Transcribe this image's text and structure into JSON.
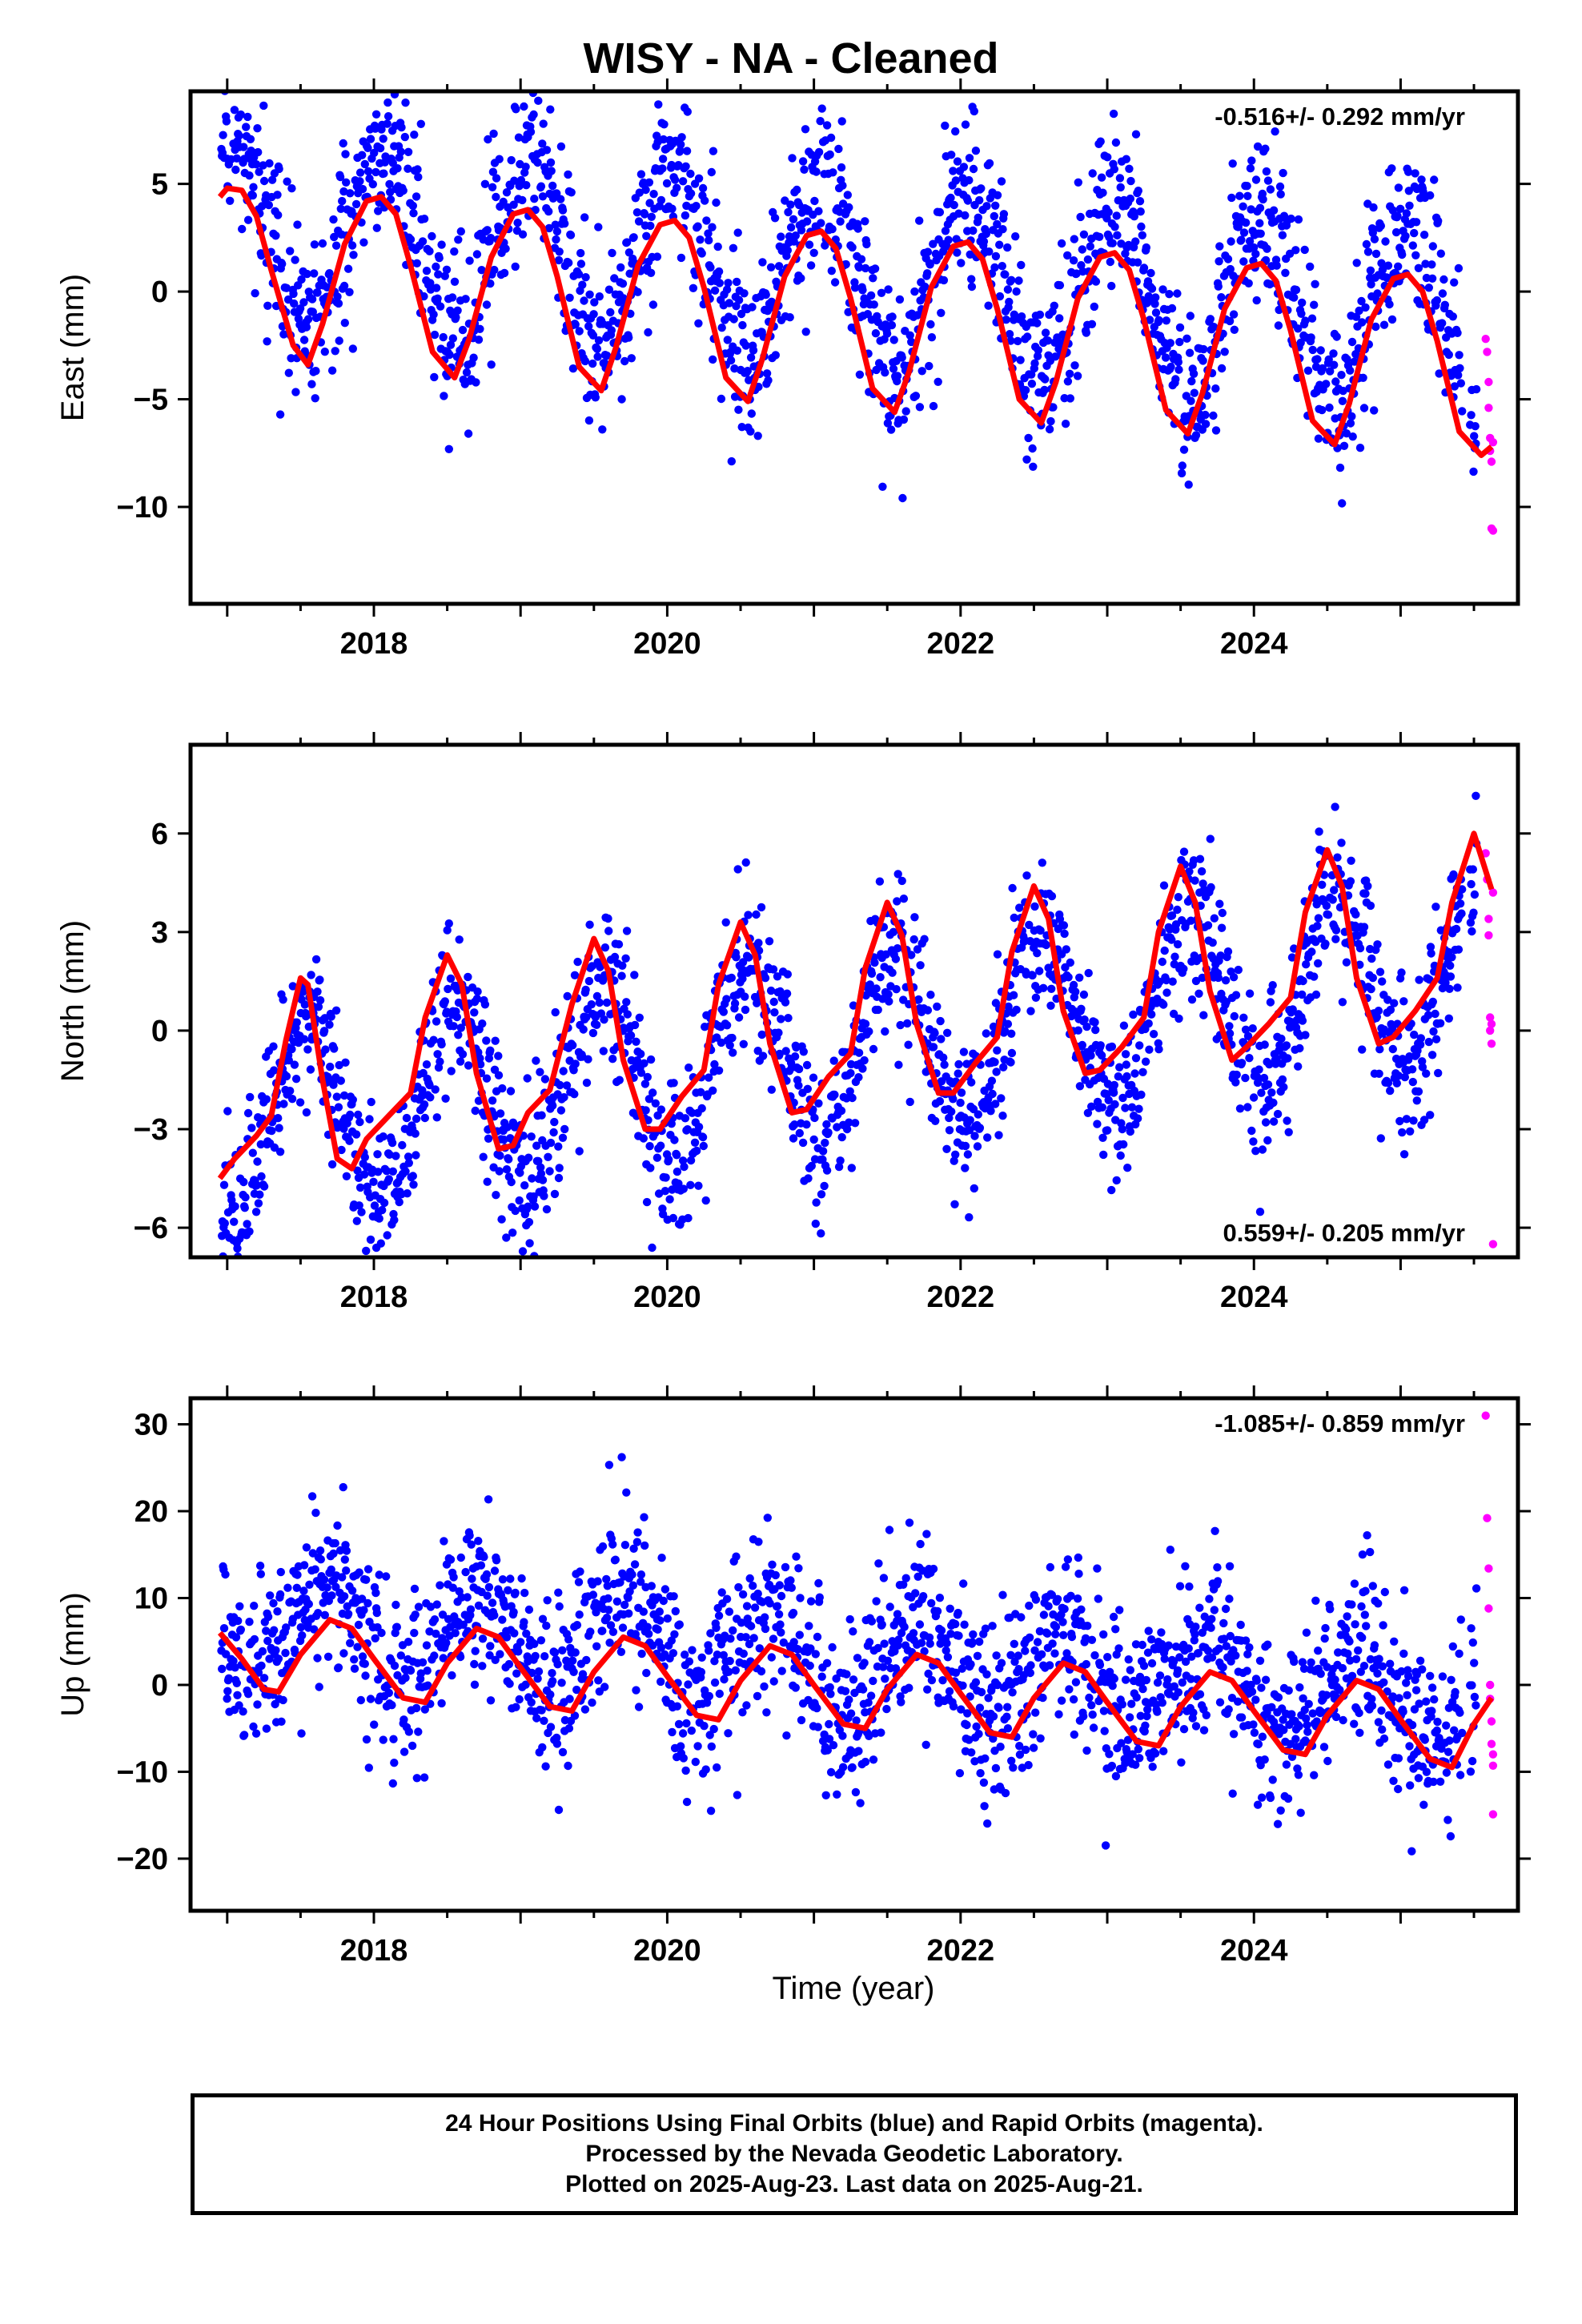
{
  "title": "WISY  - NA - Cleaned",
  "xlabel": "Time (year)",
  "caption": [
    "24 Hour Positions Using Final Orbits (blue) and Rapid Orbits (magenta).",
    "Processed by the Nevada Geodetic Laboratory.",
    "Plotted on 2025-Aug-23. Last data on 2025-Aug-21."
  ],
  "colors": {
    "final": "#0000ff",
    "rapid": "#ff00ff",
    "model": "#ff0000"
  },
  "chart_data": [
    {
      "type": "scatter",
      "ylabel": "East (mm)",
      "rate": "-0.516+/- 0.292 mm/yr",
      "rate_position": "top-right",
      "xlim": [
        2016.75,
        2025.8
      ],
      "ylim": [
        -14.5,
        9.3
      ],
      "xticks": [
        2018,
        2020,
        2022,
        2024
      ],
      "yticks": [
        5,
        0,
        -5,
        -10
      ],
      "model": {
        "x": [
          2016.95,
          2017.0,
          2017.1,
          2017.2,
          2017.3,
          2017.45,
          2017.55,
          2017.65,
          2017.8,
          2017.95,
          2018.05,
          2018.15,
          2018.25,
          2018.4,
          2018.55,
          2018.65,
          2018.8,
          2018.95,
          2019.05,
          2019.15,
          2019.25,
          2019.4,
          2019.55,
          2019.65,
          2019.8,
          2019.95,
          2020.05,
          2020.15,
          2020.25,
          2020.4,
          2020.55,
          2020.65,
          2020.8,
          2020.95,
          2021.05,
          2021.15,
          2021.25,
          2021.4,
          2021.55,
          2021.65,
          2021.8,
          2021.95,
          2022.05,
          2022.15,
          2022.25,
          2022.4,
          2022.55,
          2022.65,
          2022.8,
          2022.95,
          2023.05,
          2023.15,
          2023.25,
          2023.4,
          2023.55,
          2023.65,
          2023.8,
          2023.95,
          2024.05,
          2024.15,
          2024.25,
          2024.4,
          2024.55,
          2024.65,
          2024.8,
          2024.95,
          2025.05,
          2025.15,
          2025.25,
          2025.4,
          2025.55,
          2025.62
        ],
        "y": [
          4.4,
          4.8,
          4.7,
          3.5,
          1.0,
          -2.5,
          -3.4,
          -1.5,
          2.2,
          4.2,
          4.4,
          3.6,
          1.2,
          -2.8,
          -4.0,
          -2.2,
          1.6,
          3.6,
          3.8,
          3.0,
          0.7,
          -3.5,
          -4.6,
          -2.6,
          1.2,
          3.1,
          3.3,
          2.5,
          0.2,
          -4.0,
          -5.1,
          -3.1,
          0.7,
          2.6,
          2.8,
          2.0,
          -0.3,
          -4.5,
          -5.6,
          -3.7,
          0.2,
          2.1,
          2.3,
          1.5,
          -0.8,
          -5.0,
          -6.1,
          -4.2,
          -0.3,
          1.6,
          1.8,
          1.0,
          -1.3,
          -5.5,
          -6.6,
          -4.7,
          -0.8,
          1.1,
          1.3,
          0.5,
          -1.8,
          -6.0,
          -7.1,
          -5.2,
          -1.3,
          0.6,
          0.8,
          0.0,
          -2.3,
          -6.5,
          -7.6,
          -7.2
        ]
      },
      "final": {
        "amp": 4.2,
        "trend": -0.516,
        "offset": 1.0,
        "noise": 2.0,
        "phase": 0.05
      },
      "rapid": {
        "x": [
          2025.58,
          2025.59,
          2025.6,
          2025.6,
          2025.61,
          2025.61,
          2025.62,
          2025.62,
          2025.63,
          2025.63
        ],
        "y": [
          -2.2,
          -2.8,
          -4.2,
          -5.4,
          -6.8,
          -7.4,
          -7.9,
          -11.0,
          -11.1,
          -7.0
        ]
      }
    },
    {
      "type": "scatter",
      "ylabel": "North (mm)",
      "rate": "0.559+/- 0.205 mm/yr",
      "rate_position": "bottom-right",
      "xlim": [
        2016.75,
        2025.8
      ],
      "ylim": [
        -6.9,
        8.7
      ],
      "xticks": [
        2018,
        2020,
        2022,
        2024
      ],
      "yticks": [
        6,
        3,
        0,
        -3,
        -6
      ],
      "model": {
        "x": [
          2016.95,
          2017.05,
          2017.2,
          2017.3,
          2017.4,
          2017.5,
          2017.55,
          2017.65,
          2017.75,
          2017.85,
          2017.95,
          2018.1,
          2018.25,
          2018.35,
          2018.5,
          2018.6,
          2018.7,
          2018.85,
          2018.95,
          2019.05,
          2019.2,
          2019.35,
          2019.5,
          2019.6,
          2019.7,
          2019.85,
          2019.95,
          2020.1,
          2020.25,
          2020.35,
          2020.5,
          2020.6,
          2020.7,
          2020.85,
          2020.95,
          2021.1,
          2021.25,
          2021.35,
          2021.5,
          2021.6,
          2021.7,
          2021.85,
          2021.95,
          2022.1,
          2022.25,
          2022.35,
          2022.5,
          2022.6,
          2022.7,
          2022.85,
          2022.95,
          2023.1,
          2023.25,
          2023.35,
          2023.5,
          2023.6,
          2023.7,
          2023.85,
          2023.95,
          2024.1,
          2024.25,
          2024.35,
          2024.5,
          2024.6,
          2024.7,
          2024.85,
          2024.95,
          2025.1,
          2025.25,
          2025.35,
          2025.5,
          2025.62
        ],
        "y": [
          -4.5,
          -3.9,
          -3.2,
          -2.6,
          -0.3,
          1.6,
          1.4,
          -1.5,
          -3.9,
          -4.2,
          -3.3,
          -2.6,
          -1.9,
          0.4,
          2.3,
          1.4,
          -1.3,
          -3.6,
          -3.5,
          -2.5,
          -1.8,
          0.8,
          2.8,
          1.8,
          -0.9,
          -3.0,
          -3.0,
          -2.0,
          -1.2,
          1.4,
          3.3,
          2.3,
          -0.4,
          -2.5,
          -2.4,
          -1.4,
          -0.7,
          1.9,
          3.9,
          2.9,
          0.2,
          -1.9,
          -1.9,
          -1.0,
          -0.2,
          2.4,
          4.4,
          3.4,
          0.6,
          -1.3,
          -1.2,
          -0.5,
          0.4,
          3.0,
          5.0,
          3.9,
          1.2,
          -0.9,
          -0.5,
          0.2,
          1.0,
          3.6,
          5.5,
          4.4,
          1.6,
          -0.4,
          -0.2,
          0.6,
          1.6,
          3.9,
          6.0,
          4.3
        ]
      },
      "final": {
        "amp": 2.8,
        "trend": 0.559,
        "offset": -0.6,
        "noise": 1.2,
        "phase": 0.55
      },
      "rapid": {
        "x": [
          2025.58,
          2025.59,
          2025.6,
          2025.6,
          2025.61,
          2025.61,
          2025.62,
          2025.62,
          2025.63,
          2025.63
        ],
        "y": [
          5.4,
          4.6,
          3.4,
          2.9,
          0.4,
          0.0,
          -0.4,
          0.2,
          -6.5,
          4.2
        ]
      }
    },
    {
      "type": "scatter",
      "ylabel": "Up (mm)",
      "rate": "-1.085+/- 0.859 mm/yr",
      "rate_position": "top-right",
      "xlim": [
        2016.75,
        2025.8
      ],
      "ylim": [
        -26.0,
        33.0
      ],
      "xticks": [
        2018,
        2020,
        2022,
        2024
      ],
      "yticks": [
        30,
        20,
        10,
        0,
        -10,
        -20
      ],
      "model": {
        "x": [
          2016.95,
          2017.1,
          2017.25,
          2017.35,
          2017.5,
          2017.7,
          2017.85,
          2018.0,
          2018.2,
          2018.35,
          2018.5,
          2018.7,
          2018.85,
          2019.0,
          2019.2,
          2019.35,
          2019.5,
          2019.7,
          2019.85,
          2020.0,
          2020.2,
          2020.35,
          2020.5,
          2020.7,
          2020.85,
          2021.0,
          2021.2,
          2021.35,
          2021.5,
          2021.7,
          2021.85,
          2022.0,
          2022.2,
          2022.35,
          2022.5,
          2022.7,
          2022.85,
          2023.0,
          2023.2,
          2023.35,
          2023.5,
          2023.7,
          2023.85,
          2024.0,
          2024.2,
          2024.35,
          2024.5,
          2024.7,
          2024.85,
          2025.0,
          2025.2,
          2025.35,
          2025.5,
          2025.62
        ],
        "y": [
          6.0,
          3.0,
          -0.5,
          -0.8,
          3.5,
          7.5,
          6.5,
          3.0,
          -1.5,
          -2.0,
          2.5,
          6.5,
          5.5,
          2.0,
          -2.5,
          -3.0,
          1.5,
          5.5,
          4.5,
          1.0,
          -3.5,
          -4.0,
          0.5,
          4.5,
          3.5,
          0.0,
          -4.5,
          -5.0,
          -0.5,
          3.5,
          2.5,
          -1.0,
          -5.5,
          -6.0,
          -1.5,
          2.5,
          1.5,
          -2.0,
          -6.5,
          -7.0,
          -2.5,
          1.5,
          0.5,
          -3.0,
          -7.5,
          -8.0,
          -3.5,
          0.5,
          -0.5,
          -4.0,
          -8.5,
          -9.5,
          -4.5,
          -1.5
        ]
      },
      "final": {
        "amp": 5.5,
        "trend": -1.085,
        "offset": 3.0,
        "noise": 5.0,
        "phase": 0.7
      },
      "rapid": {
        "x": [
          2025.58,
          2025.59,
          2025.6,
          2025.6,
          2025.61,
          2025.61,
          2025.62,
          2025.62,
          2025.63,
          2025.63,
          2025.63
        ],
        "y": [
          31.0,
          19.2,
          13.4,
          8.8,
          0.0,
          -1.6,
          -4.2,
          -6.8,
          -9.3,
          -14.9,
          -8.0
        ]
      }
    }
  ]
}
